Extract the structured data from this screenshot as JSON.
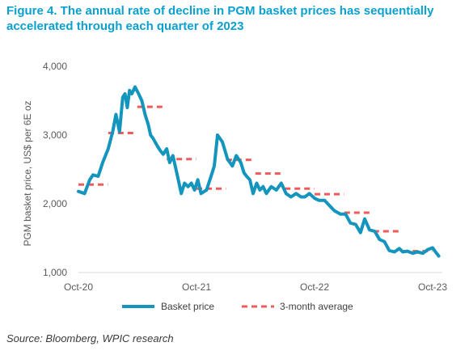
{
  "title": "Figure 4. The annual rate of decline in PGM basket prices has sequentially accelerated through each quarter of 2023",
  "source": "Source: Bloomberg, WPIC research",
  "colors": {
    "title": "#0aa0cf",
    "basket": "#1395bd",
    "average": "#f05a5a",
    "axis_text": "#595959",
    "gridline": "#d9d9d9"
  },
  "chart_data": {
    "type": "line",
    "title": "",
    "xlabel": "",
    "ylabel": "PGM basket price, US$ per 6E oz",
    "ylim": [
      1000,
      4000
    ],
    "yticks": [
      1000,
      2000,
      3000,
      4000
    ],
    "ytick_labels": [
      "1,000",
      "2,000",
      "3,000",
      "4,000"
    ],
    "xlim": [
      "2020-10-01",
      "2023-10-31"
    ],
    "xticks": [
      "2020-10-01",
      "2021-10-01",
      "2022-10-01",
      "2023-10-01"
    ],
    "xtick_labels": [
      "Oct-20",
      "Oct-21",
      "Oct-22",
      "Oct-23"
    ],
    "grid": false,
    "legend": "bottom",
    "series": [
      {
        "name": "Basket price",
        "style": "solid",
        "x": [
          "2020-10-01",
          "2020-10-20",
          "2020-11-05",
          "2020-11-15",
          "2020-12-01",
          "2020-12-15",
          "2021-01-01",
          "2021-01-15",
          "2021-01-25",
          "2021-02-05",
          "2021-02-15",
          "2021-02-22",
          "2021-03-01",
          "2021-03-08",
          "2021-03-15",
          "2021-03-25",
          "2021-04-05",
          "2021-04-15",
          "2021-04-25",
          "2021-05-05",
          "2021-05-12",
          "2021-05-20",
          "2021-06-01",
          "2021-06-10",
          "2021-06-20",
          "2021-07-01",
          "2021-07-10",
          "2021-07-20",
          "2021-08-01",
          "2021-08-15",
          "2021-08-25",
          "2021-09-05",
          "2021-09-15",
          "2021-09-25",
          "2021-10-05",
          "2021-10-15",
          "2021-11-01",
          "2021-11-15",
          "2021-11-25",
          "2021-12-05",
          "2021-12-20",
          "2022-01-05",
          "2022-01-20",
          "2022-02-01",
          "2022-02-15",
          "2022-02-25",
          "2022-03-05",
          "2022-03-15",
          "2022-03-25",
          "2022-04-05",
          "2022-04-15",
          "2022-04-25",
          "2022-05-05",
          "2022-05-20",
          "2022-06-05",
          "2022-06-20",
          "2022-07-05",
          "2022-07-20",
          "2022-08-05",
          "2022-08-20",
          "2022-09-01",
          "2022-09-15",
          "2022-10-01",
          "2022-10-15",
          "2022-11-01",
          "2022-11-15",
          "2022-12-01",
          "2022-12-20",
          "2023-01-05",
          "2023-01-20",
          "2023-02-05",
          "2023-02-20",
          "2023-03-05",
          "2023-03-20",
          "2023-04-05",
          "2023-04-20",
          "2023-05-05",
          "2023-05-20",
          "2023-06-05",
          "2023-06-20",
          "2023-07-01",
          "2023-07-15",
          "2023-08-01",
          "2023-08-15",
          "2023-09-01",
          "2023-09-15",
          "2023-10-01",
          "2023-10-10",
          "2023-10-20"
        ],
        "values": [
          2180,
          2150,
          2350,
          2420,
          2400,
          2600,
          2800,
          3050,
          3300,
          3050,
          3550,
          3600,
          3400,
          3650,
          3600,
          3700,
          3600,
          3500,
          3300,
          3150,
          3000,
          2950,
          2850,
          2780,
          2720,
          2800,
          2600,
          2700,
          2450,
          2150,
          2300,
          2250,
          2300,
          2200,
          2350,
          2150,
          2200,
          2400,
          2550,
          3000,
          2900,
          2650,
          2550,
          2700,
          2600,
          2450,
          2400,
          2350,
          2150,
          2300,
          2200,
          2250,
          2150,
          2250,
          2200,
          2300,
          2150,
          2100,
          2150,
          2100,
          2100,
          2150,
          2080,
          2050,
          2050,
          1980,
          1900,
          1850,
          1850,
          1720,
          1700,
          1580,
          1780,
          1620,
          1600,
          1480,
          1450,
          1320,
          1300,
          1350,
          1300,
          1310,
          1280,
          1300,
          1280,
          1330,
          1360,
          1300,
          1240
        ]
      },
      {
        "name": "3-month average",
        "style": "dashed",
        "segments": [
          {
            "start": "2020-10-01",
            "end": "2020-12-31",
            "value": 2280
          },
          {
            "start": "2021-01-01",
            "end": "2021-03-31",
            "value": 3030
          },
          {
            "start": "2021-04-01",
            "end": "2021-06-30",
            "value": 3410
          },
          {
            "start": "2021-07-01",
            "end": "2021-09-30",
            "value": 2650
          },
          {
            "start": "2021-10-01",
            "end": "2021-12-31",
            "value": 2220
          },
          {
            "start": "2022-01-01",
            "end": "2022-03-31",
            "value": 2640
          },
          {
            "start": "2022-04-01",
            "end": "2022-06-30",
            "value": 2440
          },
          {
            "start": "2022-07-01",
            "end": "2022-09-30",
            "value": 2220
          },
          {
            "start": "2022-10-01",
            "end": "2022-12-31",
            "value": 2140
          },
          {
            "start": "2023-01-01",
            "end": "2023-03-31",
            "value": 1870
          },
          {
            "start": "2023-04-01",
            "end": "2023-06-30",
            "value": 1600
          },
          {
            "start": "2023-07-01",
            "end": "2023-09-30",
            "value": 1310
          }
        ]
      }
    ]
  }
}
